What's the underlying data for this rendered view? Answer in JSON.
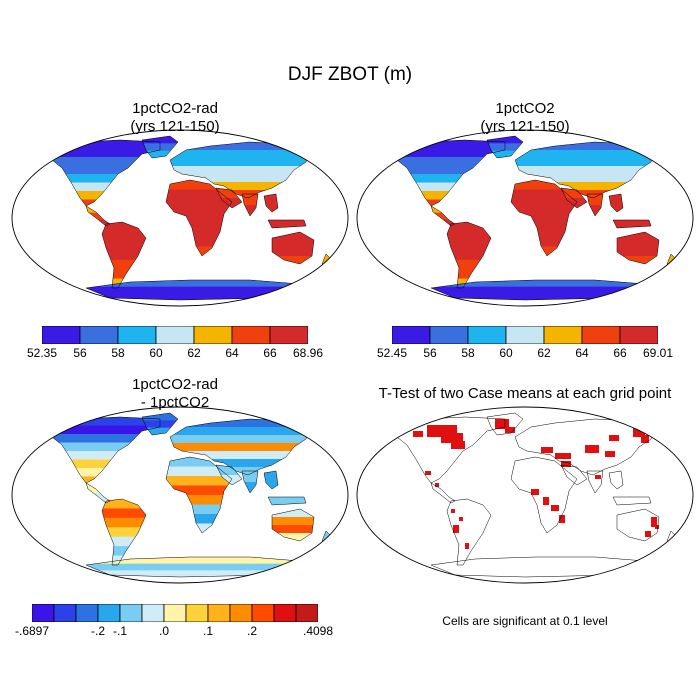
{
  "title": "DJF ZBOT (m)",
  "colors": {
    "levels_abs": [
      "#3a1be6",
      "#3a6fe0",
      "#1fb3f0",
      "#c6e6f4",
      "#f5b400",
      "#f0400e",
      "#d42a2a"
    ],
    "levels_diff": [
      "#3b14e8",
      "#2a42e8",
      "#2c72e2",
      "#2aa6ee",
      "#7acdf2",
      "#d0ecf6",
      "#fff4a8",
      "#ffd23c",
      "#ffb21a",
      "#ff8c00",
      "#ff4b00",
      "#e01010",
      "#c41a1a"
    ],
    "ttest": "#e01010",
    "land_outline": "#000000",
    "map_border": "#000000"
  },
  "chart_data": [
    {
      "type": "heatmap",
      "title": "1pctCO2-rad\n(yrs 121-150)",
      "colorbar": {
        "labels": [
          "52.35",
          "56",
          "58",
          "60",
          "62",
          "64",
          "66",
          "68.96"
        ]
      }
    },
    {
      "type": "heatmap",
      "title": "1pctCO2\n(yrs 121-150)",
      "colorbar": {
        "labels": [
          "52.45",
          "56",
          "58",
          "60",
          "62",
          "64",
          "66",
          "69.01"
        ]
      }
    },
    {
      "type": "heatmap",
      "title": "1pctCO2-rad\n- 1pctCO2",
      "colorbar": {
        "labels": [
          "-.6897",
          "-.2",
          "-.1",
          ".0",
          ".1",
          ".2",
          ".4098"
        ]
      }
    },
    {
      "type": "heatmap",
      "title": "T-Test of two Case means at each grid point",
      "note": "Cells are significant at 0.1 level"
    }
  ]
}
